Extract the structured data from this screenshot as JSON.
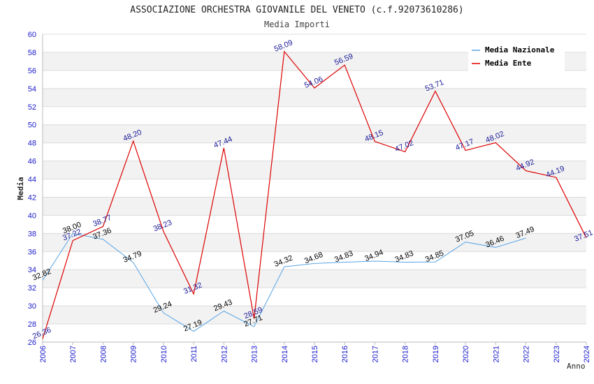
{
  "chart_data": {
    "type": "line",
    "title": "ASSOCIAZIONE ORCHESTRA GIOVANILE DEL VENETO (c.f.92073610286)",
    "subtitle": "Media Importi",
    "xlabel": "Anno",
    "ylabel": "Media",
    "ylim": [
      26,
      60
    ],
    "ytick_step": 2,
    "categories": [
      "2006",
      "2007",
      "2008",
      "2009",
      "2010",
      "2011",
      "2012",
      "2013",
      "2014",
      "2015",
      "2016",
      "2017",
      "2018",
      "2019",
      "2020",
      "2021",
      "2022",
      "2023",
      "2024"
    ],
    "legend_position": "top-right",
    "series": [
      {
        "name": "Media Nazionale",
        "color": "#5aa5e6",
        "values": [
          32.82,
          38.0,
          37.36,
          34.79,
          29.24,
          27.19,
          29.43,
          27.71,
          34.32,
          34.68,
          34.83,
          34.94,
          34.83,
          34.85,
          37.05,
          36.46,
          37.49,
          null,
          null
        ],
        "labels": [
          "32.82",
          "38.00",
          "37.36",
          "34.79",
          "29.24",
          "27.19",
          "29.43",
          "27.71",
          "34.32",
          "34.68",
          "34.83",
          "34.94",
          "34.83",
          "34.85",
          "37.05",
          "36.46",
          "37.49",
          null,
          null
        ]
      },
      {
        "name": "Media Ente",
        "color": "#dd0000",
        "values": [
          26.36,
          37.22,
          38.77,
          48.2,
          38.23,
          31.32,
          47.44,
          28.59,
          58.09,
          54.06,
          56.59,
          48.15,
          47.02,
          53.71,
          47.17,
          48.02,
          44.92,
          44.19,
          37.51
        ],
        "labels": [
          "26.36",
          "37.22",
          "38.77",
          "48.20",
          "38.23",
          "31.32",
          "47.44",
          "28.59",
          "58.09",
          "54.06",
          "56.59",
          "48.15",
          "47.02",
          "53.71",
          "47.17",
          "48.02",
          "44.92",
          "44.19",
          "37.51"
        ]
      }
    ]
  }
}
